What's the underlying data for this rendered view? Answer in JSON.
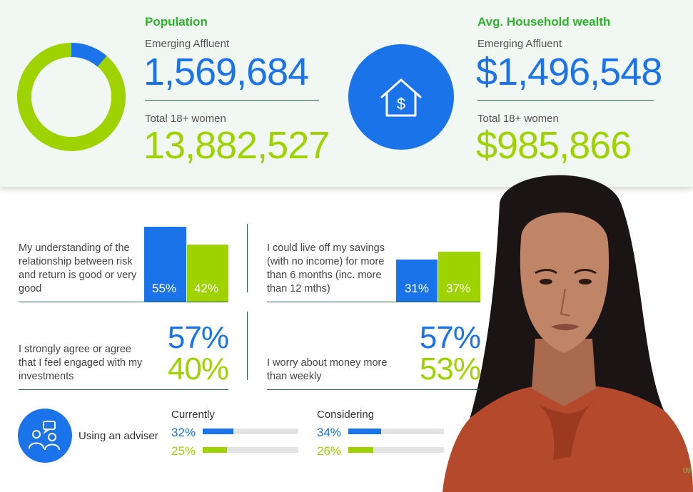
{
  "colors": {
    "blue": "#1a73e8",
    "green": "#9ed300",
    "title_green": "#2db52a"
  },
  "population": {
    "title": "Population",
    "label_affluent": "Emerging Affluent",
    "value_affluent": "1,569,684",
    "label_total": "Total 18+ women",
    "value_total": "13,882,527",
    "icon": "donut-chart"
  },
  "wealth": {
    "title": "Avg. Household wealth",
    "label_affluent": "Emerging Affluent",
    "value_affluent": "$1,496,548",
    "label_total": "Total 18+ women",
    "value_total": "$985,866",
    "icon": "house-dollar-icon"
  },
  "adviser": {
    "label": "Using an adviser",
    "icon": "people-conversation-icon",
    "currently_label": "Currently",
    "considering_label": "Considering"
  },
  "page_number": "09",
  "chart_data": [
    {
      "type": "pie",
      "variant": "donut",
      "values": [
        11.3,
        88.7
      ],
      "labels": [
        "Emerging Affluent",
        "Total 18+ women"
      ],
      "colors": [
        "#1a73e8",
        "#9ed300"
      ]
    },
    {
      "type": "bar",
      "question": "My understanding of the relationship between risk and return is good or very good",
      "series": [
        {
          "value": 55,
          "color": "#1a73e8",
          "label": "55%"
        },
        {
          "value": 42,
          "color": "#9ed300",
          "label": "42%"
        }
      ],
      "ylim": [
        0,
        100
      ]
    },
    {
      "type": "bar",
      "question": "I could live off my savings (with no income) for more than 6 months (inc. more than 12 mths)",
      "series": [
        {
          "value": 31,
          "color": "#1a73e8",
          "label": "31%"
        },
        {
          "value": 37,
          "color": "#9ed300",
          "label": "37%"
        }
      ],
      "ylim": [
        0,
        100
      ]
    },
    {
      "type": "table",
      "question": "I strongly agree or agree that I feel engaged with my investments",
      "values": [
        {
          "label": "57%",
          "value": 57,
          "color": "#1a73e8"
        },
        {
          "label": "40%",
          "value": 40,
          "color": "#9ed300"
        }
      ]
    },
    {
      "type": "table",
      "question": "I worry about money more than weekly",
      "values": [
        {
          "label": "57%",
          "value": 57,
          "color": "#1a73e8"
        },
        {
          "label": "53%",
          "value": 53,
          "color": "#9ed300"
        }
      ]
    },
    {
      "type": "bar",
      "orientation": "horizontal",
      "group": "Currently",
      "series": [
        {
          "value": 32,
          "label": "32%",
          "color": "#1a73e8"
        },
        {
          "value": 25,
          "label": "25%",
          "color": "#9ed300"
        }
      ],
      "xlim": [
        0,
        100
      ]
    },
    {
      "type": "bar",
      "orientation": "horizontal",
      "group": "Considering",
      "series": [
        {
          "value": 34,
          "label": "34%",
          "color": "#1a73e8"
        },
        {
          "value": 26,
          "label": "26%",
          "color": "#9ed300"
        }
      ],
      "xlim": [
        0,
        100
      ]
    }
  ]
}
